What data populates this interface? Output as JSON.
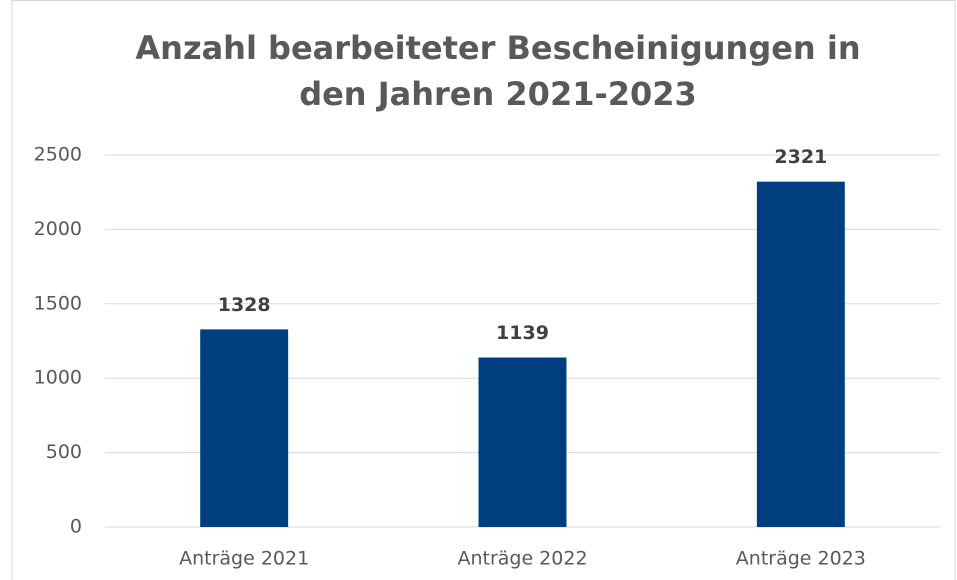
{
  "chart_data": {
    "type": "bar",
    "title": [
      "Anzahl bearbeiteter Bescheinigungen in",
      "den Jahren 2021-2023"
    ],
    "categories": [
      "Anträge 2021",
      "Anträge 2022",
      "Anträge 2023"
    ],
    "values": [
      1328,
      1139,
      2321
    ],
    "color": "#003f7f",
    "ylim": [
      0,
      2500
    ],
    "yticks": [
      0,
      500,
      1000,
      1500,
      2000,
      2500
    ],
    "grid": true
  }
}
